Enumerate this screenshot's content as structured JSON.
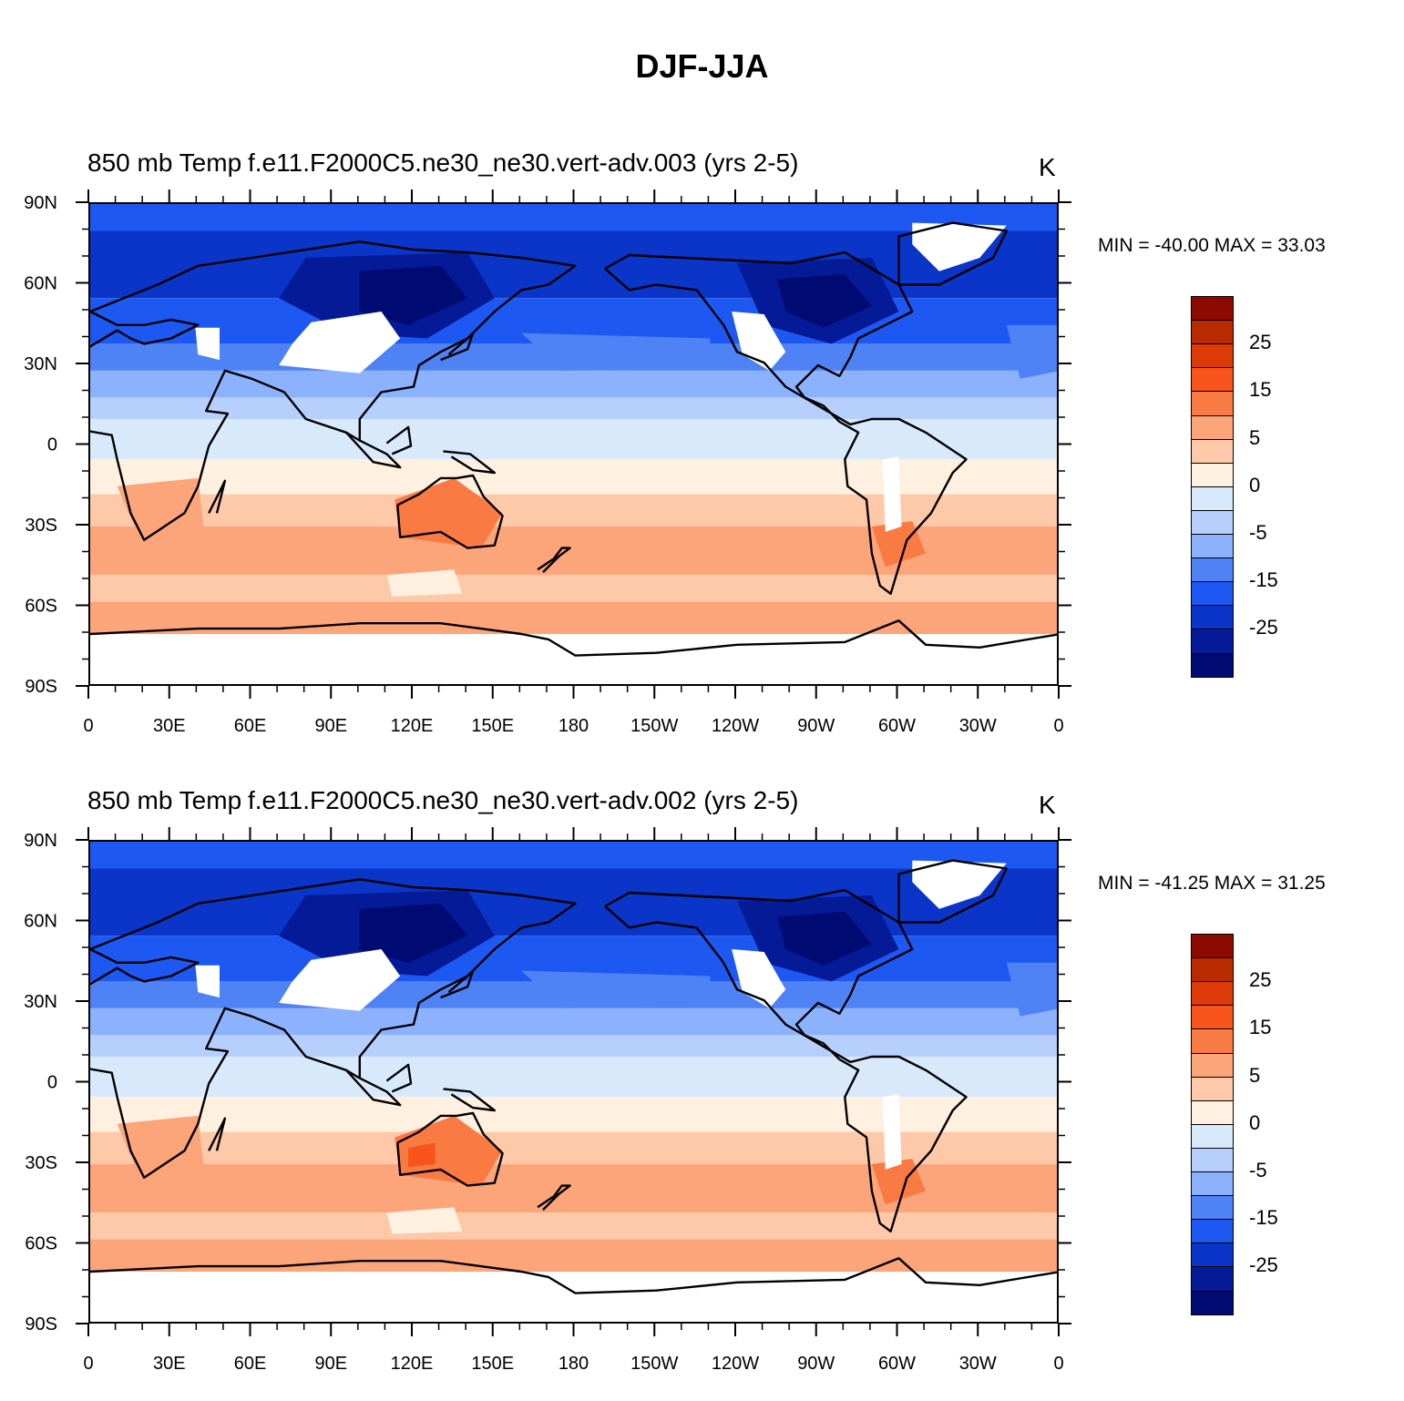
{
  "title": "DJF-JJA",
  "colorbar": {
    "colors": [
      "#8c0a00",
      "#b92a00",
      "#dc3a08",
      "#f8541b",
      "#fa7a44",
      "#fca47a",
      "#fec9a9",
      "#fff0e0",
      "#d9e9fc",
      "#b7cffd",
      "#8db2fd",
      "#4f82f4",
      "#1e58f2",
      "#0a35c8",
      "#041a96",
      "#000a73"
    ],
    "labels": [
      "25",
      "15",
      "5",
      "0",
      "-5",
      "-15",
      "-25"
    ]
  },
  "x_ticks": [
    "0",
    "30E",
    "60E",
    "90E",
    "120E",
    "150E",
    "180",
    "150W",
    "120W",
    "90W",
    "60W",
    "30W",
    "0"
  ],
  "y_ticks": [
    "90N",
    "60N",
    "30N",
    "0",
    "30S",
    "60S",
    "90S"
  ],
  "panels": [
    {
      "left_title": "850 mb Temp",
      "center_title": "f.e11.F2000C5.ne30_ne30.vert-adv.003 (yrs 2-5)",
      "units": "K",
      "minmax": "MIN = -40.00 MAX =  33.03"
    },
    {
      "left_title": "850 mb Temp",
      "center_title": "f.e11.F2000C5.ne30_ne30.vert-adv.002 (yrs 2-5)",
      "units": "K",
      "minmax": "MIN = -41.25 MAX =  31.25"
    }
  ]
}
